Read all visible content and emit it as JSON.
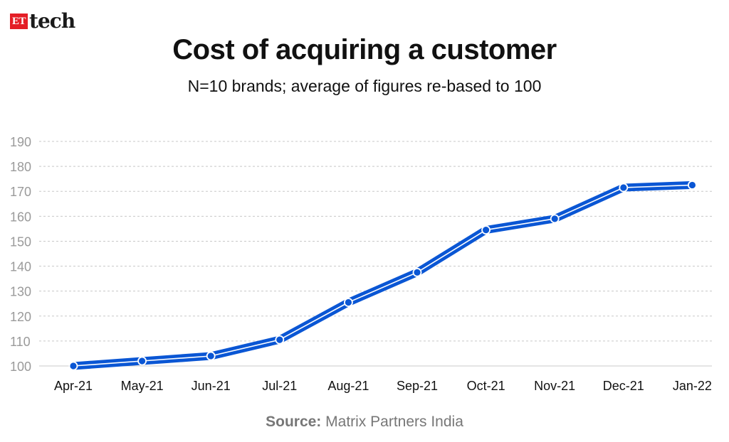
{
  "brand": {
    "badge": "ET",
    "name": "tech"
  },
  "colors": {
    "line": "#0a56d4",
    "grid": "#c8c8c8",
    "tick_text": "#9a9a9a",
    "brand_red": "#e41e26"
  },
  "source": {
    "label": "Source:",
    "text": "Matrix Partners India"
  },
  "chart_data": {
    "type": "line",
    "title": "Cost of acquiring a customer",
    "subtitle": "N=10 brands; average of figures re-based to 100",
    "categories": [
      "Apr-21",
      "May-21",
      "Jun-21",
      "Jul-21",
      "Aug-21",
      "Sep-21",
      "Oct-21",
      "Nov-21",
      "Dec-21",
      "Jan-22"
    ],
    "series": [
      {
        "values": [
          100,
          102,
          104,
          110.5,
          125.5,
          137.5,
          154.5,
          159,
          171.5,
          172.5
        ]
      }
    ],
    "ylim": [
      100,
      190
    ],
    "yticks": [
      100,
      110,
      120,
      130,
      140,
      150,
      160,
      170,
      180,
      190
    ],
    "grid": true,
    "xlabel": "",
    "ylabel": ""
  }
}
